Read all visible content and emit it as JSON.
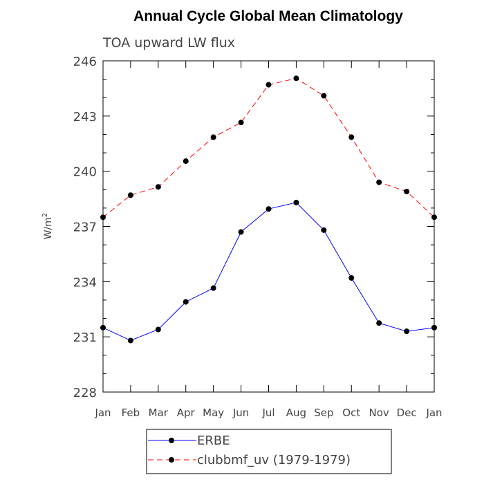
{
  "chart_data": {
    "type": "line",
    "title": "Annual Cycle Global Mean Climatology",
    "subtitle": "TOA upward LW flux",
    "xlabel": "",
    "ylabel": "W/m",
    "ylabel_sup": "2",
    "ylim": [
      228,
      246
    ],
    "yticks": [
      "228",
      "231",
      "234",
      "237",
      "240",
      "243",
      "246"
    ],
    "categories": [
      "Jan",
      "Feb",
      "Mar",
      "Apr",
      "May",
      "Jun",
      "Jul",
      "Aug",
      "Sep",
      "Oct",
      "Nov",
      "Dec",
      "Jan"
    ],
    "series": [
      {
        "name": "ERBE",
        "color": "#0000ff",
        "dash": "solid",
        "values": [
          231.5,
          230.8,
          231.4,
          232.9,
          233.65,
          236.7,
          237.95,
          238.3,
          236.8,
          234.2,
          231.75,
          231.3,
          231.5
        ]
      },
      {
        "name": "clubbmf_uv (1979-1979)",
        "color": "#ff0000",
        "dash": "dashed",
        "values": [
          237.5,
          238.7,
          239.15,
          240.55,
          241.85,
          242.65,
          244.7,
          245.05,
          244.1,
          241.85,
          239.4,
          238.9,
          237.5
        ]
      }
    ],
    "legend": {
      "placement": "bottom-center"
    }
  }
}
